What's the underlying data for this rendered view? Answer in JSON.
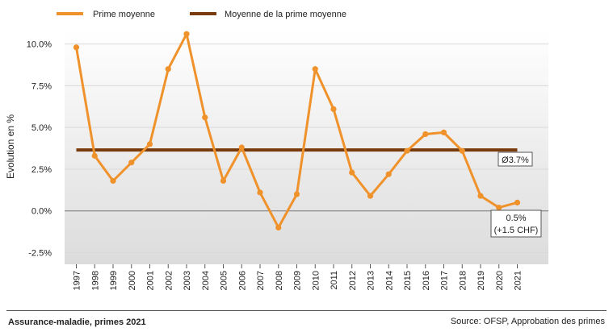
{
  "chart_data": {
    "type": "line",
    "ylabel": "Evolution en %",
    "ylim": [
      -3.2,
      10.9
    ],
    "yticks": [
      -2.5,
      0,
      2.5,
      5,
      7.5,
      10
    ],
    "ytick_labels": [
      "-2.5%",
      "0.0%",
      "2.5%",
      "5.0%",
      "7.5%",
      "10.0%"
    ],
    "categories": [
      "1997",
      "1998",
      "1999",
      "2000",
      "2001",
      "2002",
      "2003",
      "2004",
      "2005",
      "2006",
      "2007",
      "2008",
      "2009",
      "2010",
      "2011",
      "2012",
      "2013",
      "2014",
      "2015",
      "2016",
      "2017",
      "2018",
      "2019",
      "2020",
      "2021"
    ],
    "series": [
      {
        "name": "Prime moyenne",
        "color": "#f0922b",
        "values": [
          9.8,
          3.3,
          1.8,
          2.9,
          4.0,
          8.5,
          10.6,
          5.6,
          1.8,
          3.8,
          1.1,
          -1.0,
          1.0,
          8.5,
          6.1,
          2.3,
          0.9,
          2.2,
          3.6,
          4.6,
          4.7,
          3.6,
          0.9,
          0.2,
          0.5
        ]
      },
      {
        "name": "Moyenne de la prime moyenne",
        "color": "#7a3b0c",
        "value": 3.65
      }
    ],
    "annotations": [
      {
        "text": "Ø3.7%",
        "target": "average"
      },
      {
        "text": "0.5%",
        "text2": "(+1.5 CHF)",
        "target": "2021"
      }
    ]
  },
  "footer": {
    "title": "Assurance-maladie, primes 2021",
    "source": "Source: OFSP, Approbation des primes"
  }
}
